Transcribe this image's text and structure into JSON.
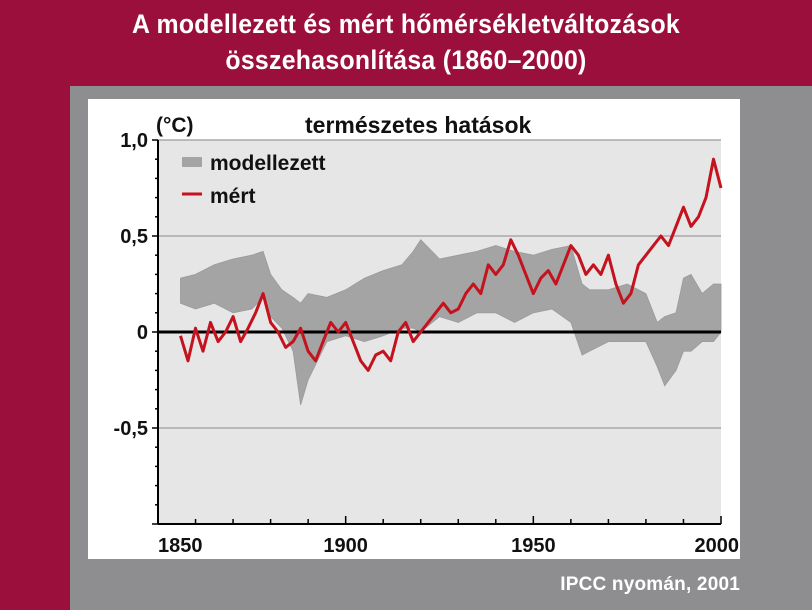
{
  "header": {
    "title_line1": "A modellezett és mért hőmérsékletváltozások",
    "title_line2": "összehasonlítása (1860–2000)"
  },
  "footer": {
    "source": "IPCC nyomán, 2001"
  },
  "colors": {
    "background": "#9a0f3c",
    "panel": "#8e8e90",
    "plot_bg": "#e6e6e6",
    "modelled": "#a4a4a4",
    "measured": "#c4121e",
    "zero_line": "#000000"
  },
  "chart_data": {
    "type": "line",
    "title": "természetes hatások",
    "ylabel": "(°C)",
    "xlabel": "",
    "xlim": [
      1850,
      2000
    ],
    "ylim": [
      -1.0,
      1.0
    ],
    "x_ticks": [
      1850,
      1900,
      1950,
      2000
    ],
    "x_tick_labels": [
      "1850",
      "1900",
      "1950",
      "2000"
    ],
    "y_ticks": [
      1.0,
      0.5,
      0,
      -0.5
    ],
    "y_tick_labels": [
      "1,0",
      "0,5",
      "0",
      "-0,5"
    ],
    "grid": "horizontal",
    "legend_position": "top-left",
    "series": [
      {
        "name": "modellezett",
        "style": "band",
        "x": [
          1856,
          1860,
          1865,
          1870,
          1875,
          1878,
          1880,
          1883,
          1886,
          1888,
          1890,
          1895,
          1900,
          1905,
          1910,
          1915,
          1918,
          1920,
          1925,
          1930,
          1935,
          1940,
          1945,
          1950,
          1955,
          1960,
          1963,
          1965,
          1970,
          1975,
          1980,
          1983,
          1985,
          1988,
          1990,
          1992,
          1995,
          1998,
          2000
        ],
        "lower": [
          0.15,
          0.12,
          0.15,
          0.1,
          0.12,
          0.18,
          0.08,
          0.02,
          -0.1,
          -0.38,
          -0.25,
          -0.05,
          -0.02,
          -0.05,
          -0.02,
          0.02,
          0.02,
          0.0,
          0.08,
          0.05,
          0.1,
          0.1,
          0.05,
          0.1,
          0.12,
          0.05,
          -0.12,
          -0.1,
          -0.05,
          -0.05,
          -0.05,
          -0.18,
          -0.28,
          -0.2,
          -0.1,
          -0.1,
          -0.05,
          -0.05,
          0.0
        ],
        "upper": [
          0.28,
          0.3,
          0.35,
          0.38,
          0.4,
          0.42,
          0.3,
          0.22,
          0.18,
          0.15,
          0.2,
          0.18,
          0.22,
          0.28,
          0.32,
          0.35,
          0.42,
          0.48,
          0.38,
          0.4,
          0.42,
          0.45,
          0.42,
          0.4,
          0.43,
          0.45,
          0.25,
          0.22,
          0.22,
          0.25,
          0.2,
          0.05,
          0.08,
          0.1,
          0.28,
          0.3,
          0.2,
          0.25,
          0.25
        ]
      },
      {
        "name": "mért",
        "style": "line",
        "x": [
          1856,
          1858,
          1860,
          1862,
          1864,
          1866,
          1868,
          1870,
          1872,
          1874,
          1876,
          1878,
          1880,
          1882,
          1884,
          1886,
          1888,
          1890,
          1892,
          1894,
          1896,
          1898,
          1900,
          1902,
          1904,
          1906,
          1908,
          1910,
          1912,
          1914,
          1916,
          1918,
          1920,
          1922,
          1924,
          1926,
          1928,
          1930,
          1932,
          1934,
          1936,
          1938,
          1940,
          1942,
          1944,
          1946,
          1948,
          1950,
          1952,
          1954,
          1956,
          1958,
          1960,
          1962,
          1964,
          1966,
          1968,
          1970,
          1972,
          1974,
          1976,
          1978,
          1980,
          1982,
          1984,
          1986,
          1988,
          1990,
          1992,
          1994,
          1996,
          1998,
          2000
        ],
        "y": [
          -0.02,
          -0.15,
          0.02,
          -0.1,
          0.05,
          -0.05,
          0.0,
          0.08,
          -0.05,
          0.02,
          0.1,
          0.2,
          0.05,
          0.0,
          -0.08,
          -0.05,
          0.02,
          -0.1,
          -0.15,
          -0.05,
          0.05,
          0.0,
          0.05,
          -0.05,
          -0.15,
          -0.2,
          -0.12,
          -0.1,
          -0.15,
          0.0,
          0.05,
          -0.05,
          0.0,
          0.05,
          0.1,
          0.15,
          0.1,
          0.12,
          0.2,
          0.25,
          0.2,
          0.35,
          0.3,
          0.35,
          0.48,
          0.4,
          0.3,
          0.2,
          0.28,
          0.32,
          0.25,
          0.35,
          0.45,
          0.4,
          0.3,
          0.35,
          0.3,
          0.4,
          0.25,
          0.15,
          0.2,
          0.35,
          0.4,
          0.45,
          0.5,
          0.45,
          0.55,
          0.65,
          0.55,
          0.6,
          0.7,
          0.9,
          0.75
        ]
      }
    ]
  }
}
